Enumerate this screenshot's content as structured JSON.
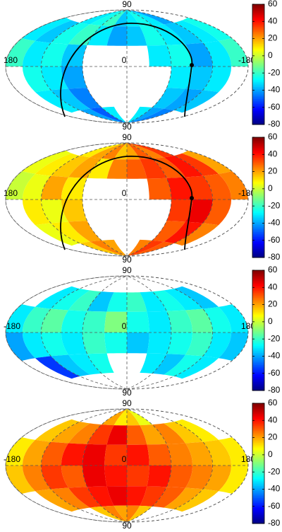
{
  "chart_data": [
    {
      "type": "heatmap",
      "colormap": "jet",
      "xlim": [
        180,
        -180
      ],
      "ylim": [
        -90,
        90
      ],
      "xticks": [
        180,
        0,
        -180
      ],
      "yticks": [
        90,
        {
          "value": -90,
          "label": "90"
        }
      ],
      "clim": [
        -80,
        60
      ],
      "cticks": [
        60,
        40,
        20,
        0,
        -20,
        -40,
        -60,
        -80
      ],
      "values": [
        [
          null,
          null,
          -30,
          -25,
          -20,
          -35,
          -30,
          -25,
          -30,
          -40,
          null,
          null
        ],
        [
          -30,
          -35,
          -25,
          -20,
          -30,
          -40,
          -35,
          -25,
          -30,
          -35,
          -30,
          -25
        ],
        [
          -20,
          -30,
          -25,
          -35,
          null,
          null,
          null,
          -30,
          -25,
          -40,
          -30,
          -20
        ],
        [
          null,
          -25,
          -30,
          -40,
          null,
          null,
          null,
          null,
          -30,
          -35,
          -30,
          null
        ],
        [
          null,
          -30,
          -35,
          -45,
          null,
          null,
          null,
          null,
          -35,
          -40,
          -35,
          null
        ],
        [
          null,
          null,
          -40,
          -50,
          -30,
          null,
          null,
          -30,
          -40,
          -45,
          null,
          null
        ]
      ]
    },
    {
      "type": "heatmap",
      "colormap": "jet",
      "xlim": [
        180,
        -180
      ],
      "ylim": [
        -90,
        90
      ],
      "xticks": [
        180,
        0,
        -180
      ],
      "yticks": [
        90,
        {
          "value": -90,
          "label": "90"
        }
      ],
      "clim": [
        -80,
        60
      ],
      "cticks": [
        60,
        40,
        20,
        0,
        -20,
        -40,
        -60,
        -80
      ],
      "values": [
        [
          null,
          null,
          10,
          20,
          25,
          15,
          20,
          30,
          25,
          35,
          null,
          null
        ],
        [
          5,
          10,
          15,
          20,
          10,
          25,
          30,
          35,
          30,
          40,
          35,
          20
        ],
        [
          0,
          5,
          20,
          10,
          null,
          null,
          null,
          30,
          40,
          35,
          30,
          25
        ],
        [
          null,
          10,
          5,
          15,
          null,
          null,
          null,
          null,
          35,
          45,
          30,
          null
        ],
        [
          null,
          5,
          10,
          20,
          null,
          null,
          null,
          null,
          30,
          40,
          25,
          null
        ],
        [
          null,
          null,
          15,
          25,
          20,
          null,
          null,
          25,
          35,
          30,
          null,
          null
        ]
      ]
    },
    {
      "type": "heatmap",
      "colormap": "jet",
      "xlim": [
        -180,
        180
      ],
      "ylim": [
        -90,
        90
      ],
      "xticks": [
        -180,
        0,
        180
      ],
      "yticks": [
        90,
        {
          "value": -90,
          "label": "90"
        }
      ],
      "clim": [
        -80,
        60
      ],
      "cticks": [
        60,
        40,
        20,
        0,
        -20,
        -40,
        -60,
        -80
      ],
      "values": [
        [
          null,
          null,
          null,
          null,
          null,
          null,
          null,
          null,
          null,
          null,
          null,
          null
        ],
        [
          null,
          -30,
          -25,
          -20,
          -35,
          -25,
          -20,
          -30,
          -25,
          -30,
          -35,
          null
        ],
        [
          -30,
          -20,
          -15,
          -25,
          -20,
          -10,
          -25,
          -30,
          -20,
          -15,
          -25,
          -30
        ],
        [
          -40,
          -30,
          -25,
          -30,
          -20,
          -25,
          -35,
          -30,
          -25,
          -20,
          -30,
          -35
        ],
        [
          null,
          -55,
          -35,
          -30,
          -25,
          null,
          null,
          -30,
          -35,
          -25,
          -30,
          null
        ],
        [
          null,
          null,
          null,
          null,
          null,
          null,
          null,
          null,
          null,
          null,
          null,
          null
        ]
      ]
    },
    {
      "type": "heatmap",
      "colormap": "jet",
      "xlim": [
        -180,
        180
      ],
      "ylim": [
        -90,
        90
      ],
      "xticks": [
        {
          "value": -180,
          "label": "-180"
        },
        0,
        180
      ],
      "yticks": [
        90,
        {
          "value": -90,
          "label": "90"
        }
      ],
      "clim": [
        -80,
        60
      ],
      "cticks": [
        60,
        40,
        20,
        0,
        -20,
        -40,
        -60,
        -80
      ],
      "values": [
        [
          null,
          null,
          null,
          null,
          20,
          10,
          15,
          5,
          null,
          null,
          null,
          null
        ],
        [
          null,
          15,
          20,
          25,
          35,
          45,
          30,
          20,
          25,
          15,
          10,
          null
        ],
        [
          10,
          20,
          30,
          40,
          45,
          35,
          40,
          30,
          25,
          20,
          15,
          10
        ],
        [
          15,
          25,
          35,
          30,
          45,
          40,
          35,
          40,
          30,
          25,
          20,
          10
        ],
        [
          null,
          20,
          25,
          35,
          40,
          45,
          40,
          35,
          30,
          20,
          15,
          null
        ],
        [
          null,
          null,
          null,
          15,
          25,
          20,
          25,
          15,
          null,
          null,
          null,
          null
        ]
      ]
    }
  ]
}
